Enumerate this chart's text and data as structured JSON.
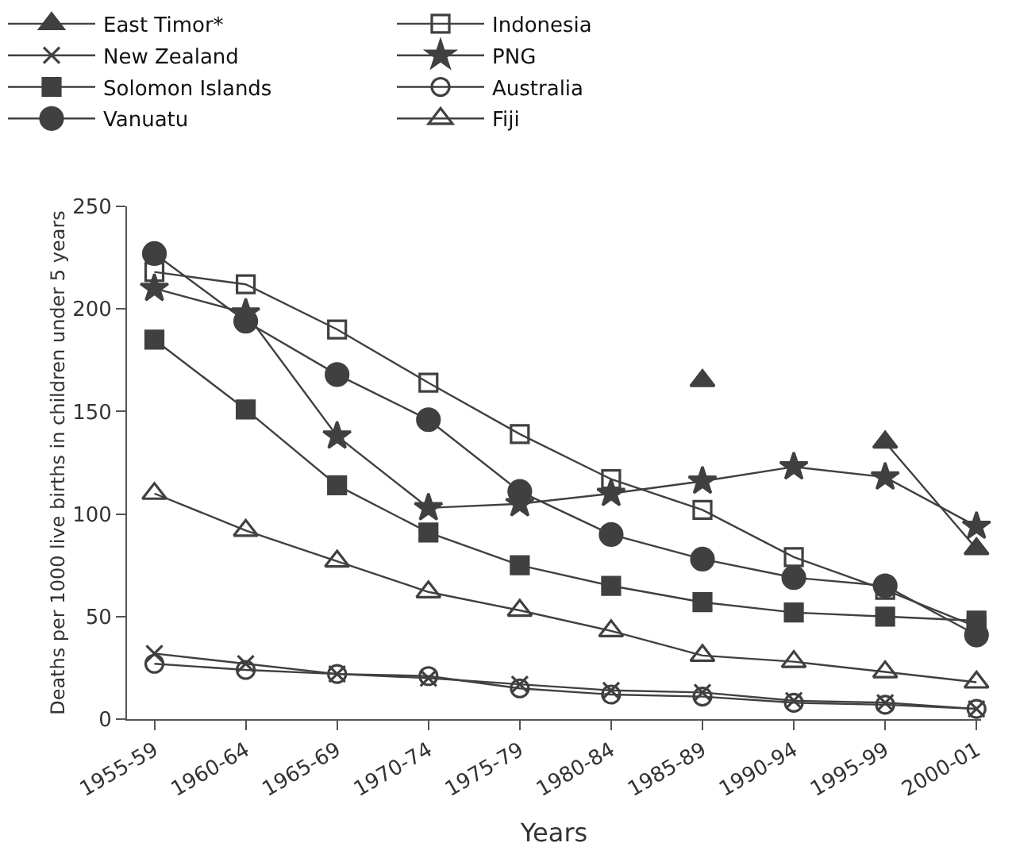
{
  "chart_data": {
    "type": "line",
    "xlabel": "Years",
    "ylabel": "Deaths per 1000 live births in children under 5 years",
    "categories": [
      "1955-59",
      "1960-64",
      "1965-69",
      "1970-74",
      "1975-79",
      "1980-84",
      "1985-89",
      "1990-94",
      "1995-99",
      "2000-01"
    ],
    "ylim": [
      0,
      250
    ],
    "yticks": [
      0,
      50,
      100,
      150,
      200,
      250
    ],
    "grid": false,
    "legend": "top",
    "series": [
      {
        "name": "East Timor*",
        "color": "#404040",
        "marker": "triangle",
        "values": [
          null,
          null,
          null,
          null,
          null,
          null,
          165,
          null,
          135,
          83
        ]
      },
      {
        "name": "Indonesia",
        "color": "#404040",
        "marker": "square-open",
        "values": [
          218,
          212,
          190,
          164,
          139,
          117,
          102,
          79,
          63,
          45
        ]
      },
      {
        "name": "New Zealand",
        "color": "#404040",
        "marker": "cross",
        "values": [
          32,
          27,
          22,
          20,
          17,
          14,
          13,
          9,
          8,
          5
        ]
      },
      {
        "name": "PNG",
        "color": "#404040",
        "marker": "star",
        "values": [
          210,
          198,
          138,
          103,
          105,
          110,
          116,
          123,
          118,
          94
        ]
      },
      {
        "name": "Solomon Islands",
        "color": "#404040",
        "marker": "square",
        "values": [
          185,
          151,
          114,
          91,
          75,
          65,
          57,
          52,
          50,
          48
        ]
      },
      {
        "name": "Australia",
        "color": "#404040",
        "marker": "circle-open",
        "values": [
          27,
          24,
          22,
          21,
          15,
          12,
          11,
          8,
          7,
          5
        ]
      },
      {
        "name": "Vanuatu",
        "color": "#404040",
        "marker": "circle",
        "values": [
          227,
          194,
          168,
          146,
          111,
          90,
          78,
          69,
          65,
          41
        ]
      },
      {
        "name": "Fiji",
        "color": "#404040",
        "marker": "triangle-open",
        "values": [
          110,
          92,
          77,
          62,
          53,
          43,
          31,
          28,
          23,
          18
        ]
      }
    ]
  }
}
